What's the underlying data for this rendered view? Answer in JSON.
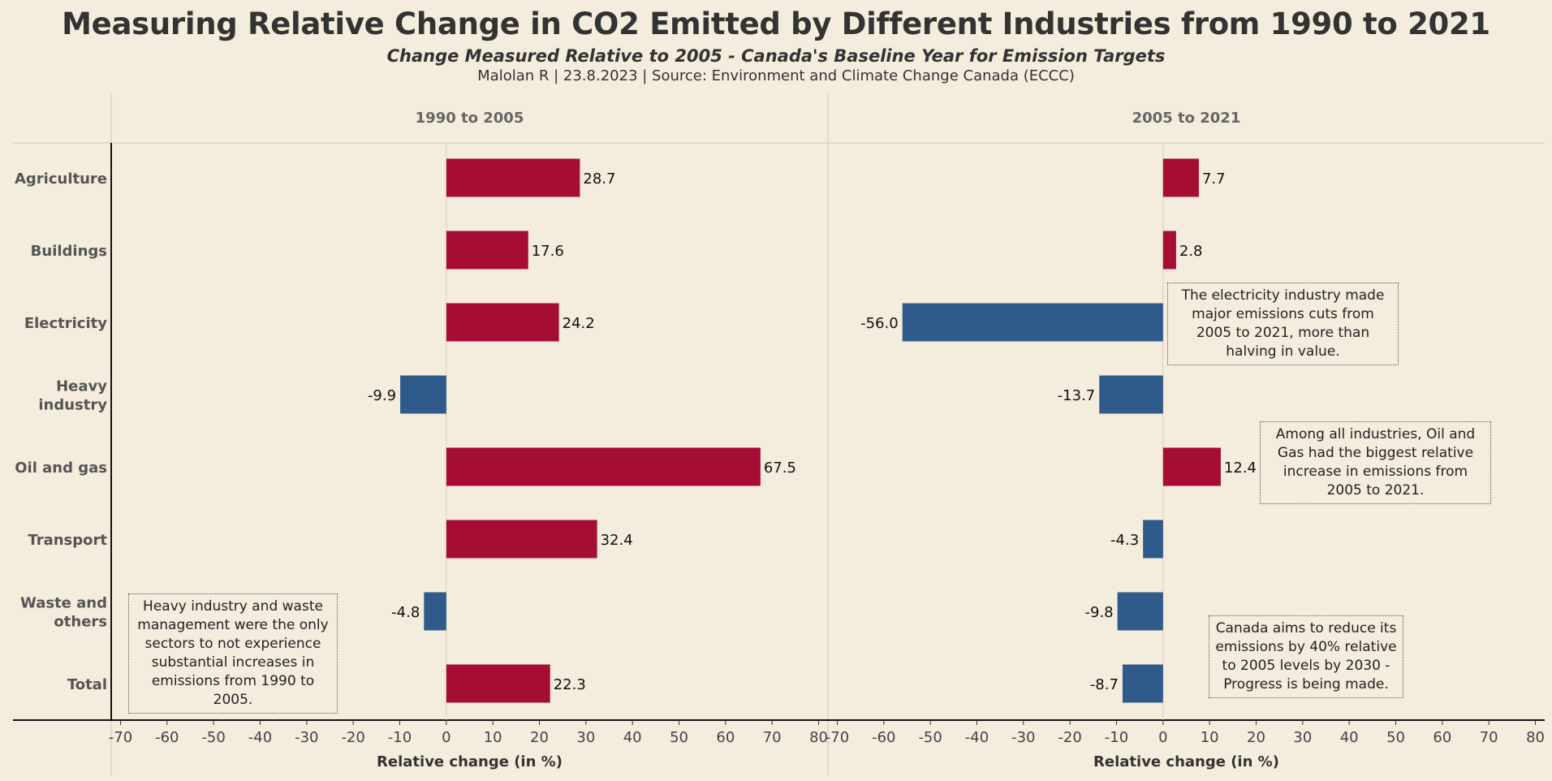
{
  "header": {
    "title": "Measuring Relative Change in CO2 Emitted by Different Industries from 1990 to 2021",
    "subtitle": "Change Measured Relative to 2005 - Canada's Baseline Year for Emission Targets",
    "byline": "Malolan R | 23.8.2023 | Source: Environment and Climate Change Canada (ECCC)"
  },
  "colors": {
    "positive": "#a50d34",
    "negative": "#2f5b8a",
    "background": "#f4ecdc"
  },
  "chart_data": {
    "type": "bar",
    "orientation": "horizontal",
    "categories": [
      [
        "Agriculture"
      ],
      [
        "Buildings"
      ],
      [
        "Electricity"
      ],
      [
        "Heavy",
        "industry"
      ],
      [
        "Oil and gas"
      ],
      [
        "Transport"
      ],
      [
        "Waste and",
        "others"
      ],
      [
        "Total"
      ]
    ],
    "panels": [
      {
        "label": "1990 to 2005",
        "values": [
          28.7,
          17.6,
          24.2,
          -9.9,
          67.5,
          32.4,
          -4.8,
          22.3
        ],
        "value_labels": [
          "28.7",
          "17.6",
          "24.2",
          "-9.9",
          "67.5",
          "32.4",
          "-4.8",
          "22.3"
        ]
      },
      {
        "label": "2005 to 2021",
        "values": [
          7.7,
          2.8,
          -56.0,
          -13.7,
          12.4,
          -4.3,
          -9.8,
          -8.7
        ],
        "value_labels": [
          "7.7",
          "2.8",
          "-56.0",
          "-13.7",
          "12.4",
          "-4.3",
          "-9.8",
          "-8.7"
        ]
      }
    ],
    "xlabel": "Relative change (in %)",
    "xlim": [
      -72,
      82
    ],
    "xticks": [
      -70,
      -60,
      -50,
      -40,
      -30,
      -20,
      -10,
      0,
      10,
      20,
      30,
      40,
      50,
      60,
      70,
      80
    ]
  },
  "annotations": {
    "waste": "Heavy industry and waste management were the only sectors to not experience substantial increases in emissions from 1990 to 2005.",
    "electricity": "The electricity industry made major emissions cuts from 2005 to 2021, more than halving in value.",
    "oil": "Among all industries, Oil and Gas had the biggest relative increase in emissions from 2005 to 2021.",
    "target": "Canada aims to reduce its emissions by 40% relative to 2005 levels by 2030 - Progress is being made."
  }
}
